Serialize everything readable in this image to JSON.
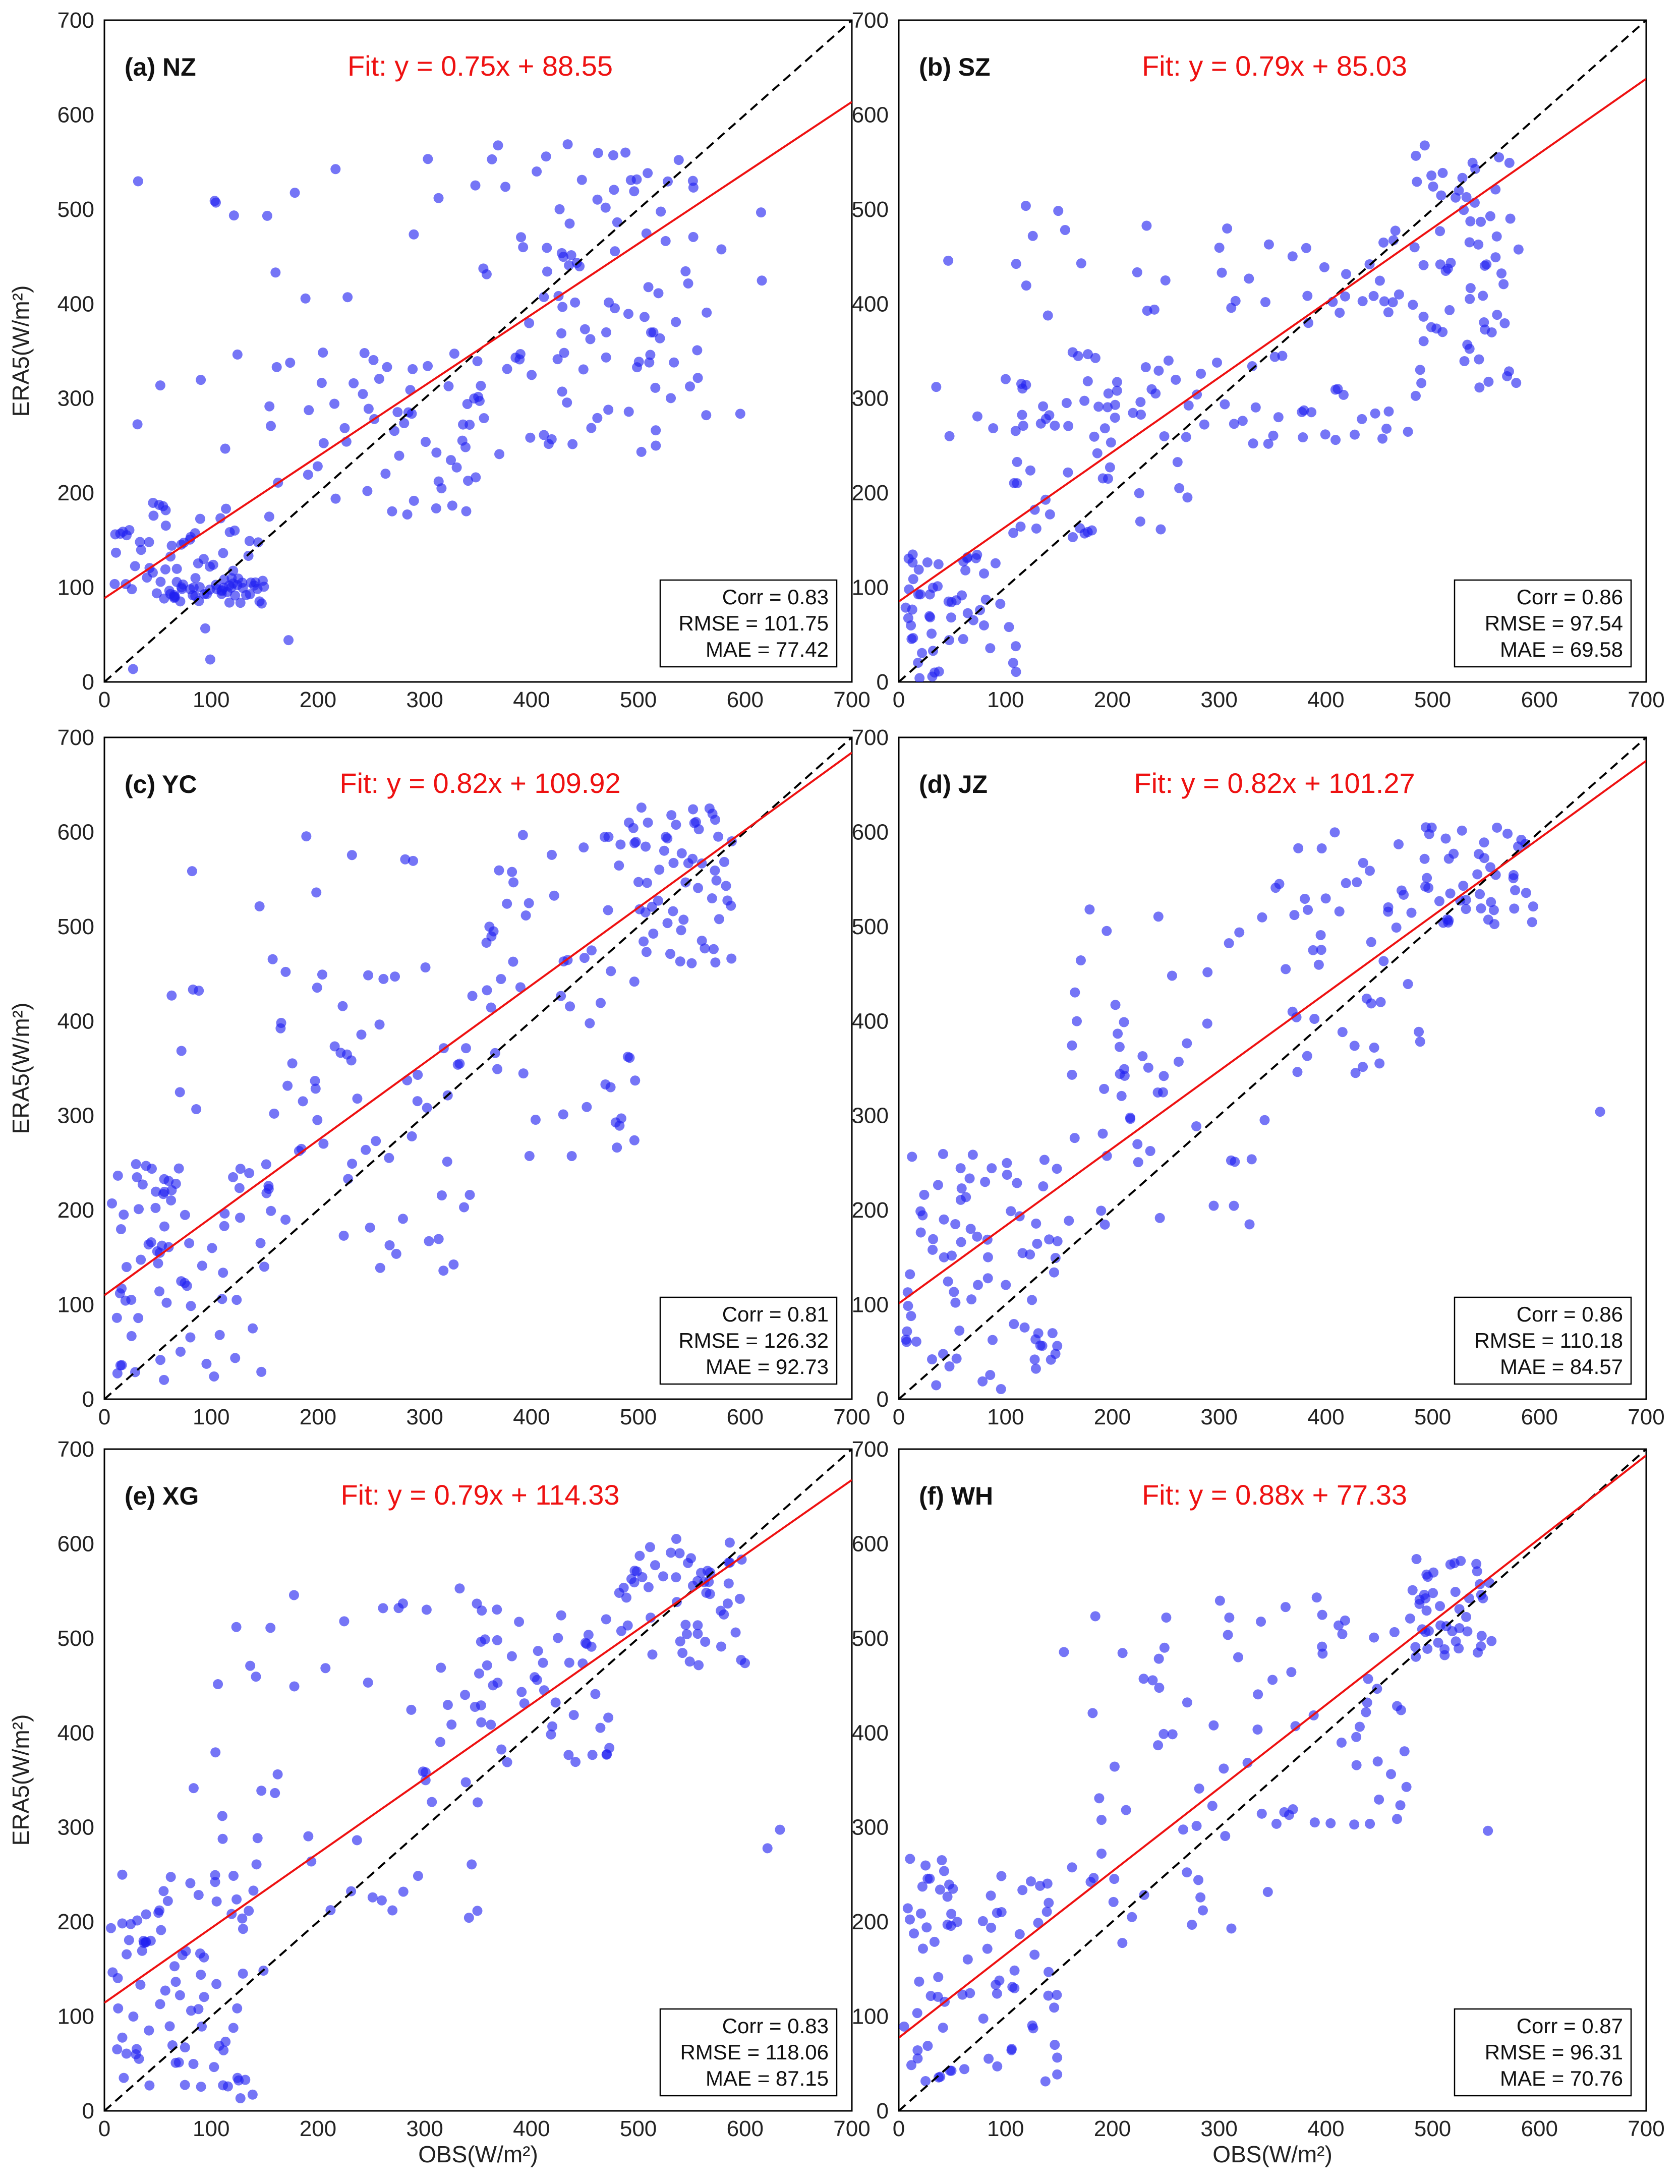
{
  "chart_data": [
    {
      "type": "scatter",
      "title": "(a) NZ",
      "fit_label": "Fit: y = 0.75x + 88.55",
      "fit": {
        "slope": 0.75,
        "intercept": 88.55
      },
      "stats": [
        "Corr = 0.83",
        "RMSE = 101.75",
        "MAE = 77.42"
      ],
      "ylabel": "ERA5(W/m²)",
      "xlabel": "",
      "xlim": [
        0,
        700
      ],
      "ylim": [
        0,
        700
      ],
      "x_ticks": [
        0,
        100,
        200,
        300,
        400,
        500,
        600,
        700
      ],
      "y_ticks": [
        0,
        100,
        200,
        300,
        400,
        500,
        600,
        700
      ],
      "seed": 11,
      "clusters": [
        [
          5,
          150,
          80,
          190,
          60
        ],
        [
          60,
          150,
          90,
          110,
          35
        ],
        [
          150,
          350,
          170,
          350,
          55
        ],
        [
          350,
          560,
          240,
          570,
          90
        ],
        [
          20,
          180,
          0,
          540,
          20
        ],
        [
          180,
          620,
          250,
          560,
          25
        ]
      ]
    },
    {
      "type": "scatter",
      "title": "(b) SZ",
      "fit_label": "Fit: y = 0.79x + 85.03",
      "fit": {
        "slope": 0.79,
        "intercept": 85.03
      },
      "stats": [
        "Corr = 0.86",
        "RMSE = 97.54",
        "MAE = 69.58"
      ],
      "ylabel": "",
      "xlabel": "",
      "xlim": [
        0,
        700
      ],
      "ylim": [
        0,
        700
      ],
      "x_ticks": [
        0,
        100,
        200,
        300,
        400,
        500,
        600,
        700
      ],
      "y_ticks": [
        0,
        100,
        200,
        300,
        400,
        500,
        600,
        700
      ],
      "seed": 23,
      "clusters": [
        [
          5,
          110,
          0,
          140,
          55
        ],
        [
          100,
          300,
          150,
          350,
          60
        ],
        [
          300,
          480,
          250,
          480,
          55
        ],
        [
          480,
          590,
          300,
          570,
          65
        ],
        [
          30,
          250,
          250,
          525,
          30
        ]
      ]
    },
    {
      "type": "scatter",
      "title": "(c) YC",
      "fit_label": "Fit: y = 0.82x + 109.92",
      "fit": {
        "slope": 0.82,
        "intercept": 109.92
      },
      "stats": [
        "Corr = 0.81",
        "RMSE = 126.32",
        "MAE = 92.73"
      ],
      "ylabel": "ERA5(W/m²)",
      "xlabel": "",
      "xlim": [
        0,
        700
      ],
      "ylim": [
        0,
        700
      ],
      "x_ticks": [
        0,
        100,
        200,
        300,
        400,
        500,
        600,
        700
      ],
      "y_ticks": [
        0,
        100,
        200,
        300,
        400,
        500,
        600,
        700
      ],
      "seed": 37,
      "clusters": [
        [
          5,
          160,
          20,
          250,
          75
        ],
        [
          150,
          350,
          120,
          450,
          50
        ],
        [
          350,
          500,
          250,
          600,
          50
        ],
        [
          480,
          590,
          460,
          630,
          60
        ],
        [
          60,
          320,
          300,
          620,
          25
        ]
      ]
    },
    {
      "type": "scatter",
      "title": "(d) JZ",
      "fit_label": "Fit: y = 0.82x + 101.27",
      "fit": {
        "slope": 0.82,
        "intercept": 101.27
      },
      "stats": [
        "Corr = 0.86",
        "RMSE = 110.18",
        "MAE = 84.57"
      ],
      "ylabel": "",
      "xlabel": "",
      "xlim": [
        0,
        700
      ],
      "ylim": [
        0,
        700
      ],
      "x_ticks": [
        0,
        100,
        200,
        300,
        400,
        500,
        600,
        700
      ],
      "y_ticks": [
        0,
        100,
        200,
        300,
        400,
        500,
        600,
        700
      ],
      "seed": 41,
      "clusters": [
        [
          5,
          150,
          10,
          260,
          80
        ],
        [
          150,
          350,
          150,
          520,
          50
        ],
        [
          350,
          490,
          340,
          600,
          45
        ],
        [
          490,
          600,
          500,
          605,
          45
        ],
        [
          640,
          660,
          300,
          315,
          1
        ]
      ]
    },
    {
      "type": "scatter",
      "title": "(e) XG",
      "fit_label": "Fit: y = 0.79x + 114.33",
      "fit": {
        "slope": 0.79,
        "intercept": 114.33
      },
      "stats": [
        "Corr = 0.83",
        "RMSE = 118.06",
        "MAE = 87.15"
      ],
      "ylabel": "ERA5(W/m²)",
      "xlabel": "OBS(W/m²)",
      "xlim": [
        0,
        700
      ],
      "ylim": [
        0,
        700
      ],
      "x_ticks": [
        0,
        100,
        200,
        300,
        400,
        500,
        600,
        700
      ],
      "y_ticks": [
        0,
        100,
        200,
        300,
        400,
        500,
        600,
        700
      ],
      "seed": 53,
      "clusters": [
        [
          5,
          150,
          5,
          260,
          80
        ],
        [
          80,
          350,
          200,
          560,
          55
        ],
        [
          350,
          480,
          360,
          540,
          45
        ],
        [
          480,
          600,
          470,
          605,
          55
        ],
        [
          620,
          640,
          270,
          310,
          2
        ]
      ]
    },
    {
      "type": "scatter",
      "title": "(f) WH",
      "fit_label": "Fit: y = 0.88x + 77.33",
      "fit": {
        "slope": 0.88,
        "intercept": 77.33
      },
      "stats": [
        "Corr = 0.87",
        "RMSE = 96.31",
        "MAE = 70.76"
      ],
      "ylabel": "",
      "xlabel": "OBS(W/m²)",
      "xlim": [
        0,
        700
      ],
      "ylim": [
        0,
        700
      ],
      "x_ticks": [
        0,
        100,
        200,
        300,
        400,
        500,
        600,
        700
      ],
      "y_ticks": [
        0,
        100,
        200,
        300,
        400,
        500,
        600,
        700
      ],
      "seed": 67,
      "clusters": [
        [
          5,
          150,
          30,
          270,
          80
        ],
        [
          150,
          350,
          170,
          540,
          50
        ],
        [
          350,
          480,
          300,
          550,
          40
        ],
        [
          480,
          560,
          480,
          590,
          45
        ],
        [
          550,
          560,
          295,
          305,
          1
        ]
      ]
    }
  ],
  "colors": {
    "points": "#2020f0",
    "fit_line": "#ee1111",
    "identity_line": "#000000"
  }
}
